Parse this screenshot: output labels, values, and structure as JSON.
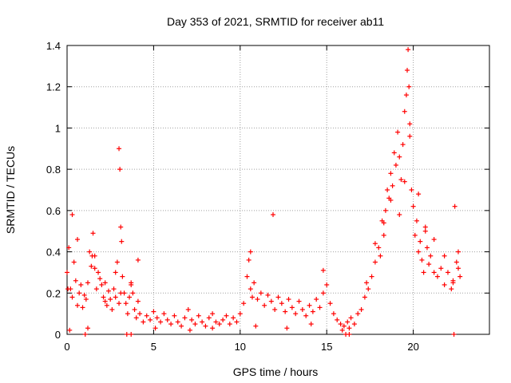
{
  "chart_data": {
    "type": "scatter",
    "title": "Day 353 of 2021, SRMTID for receiver ab11",
    "xlabel": "GPS time / hours",
    "ylabel": "SRMTID / TECUs",
    "xlim": [
      0,
      24.4
    ],
    "ylim": [
      0,
      1.4
    ],
    "grid": true,
    "marker": "+",
    "color": "#ff0000",
    "x_ticks": [
      {
        "value": 0,
        "label": "0"
      },
      {
        "value": 5,
        "label": "5"
      },
      {
        "value": 10,
        "label": "10"
      },
      {
        "value": 15,
        "label": "15"
      },
      {
        "value": 20,
        "label": "20"
      }
    ],
    "y_ticks": [
      {
        "value": 0,
        "label": "0"
      },
      {
        "value": 0.2,
        "label": "0.2"
      },
      {
        "value": 0.4,
        "label": "0.4"
      },
      {
        "value": 0.6,
        "label": "0.6"
      },
      {
        "value": 0.8,
        "label": "0.8"
      },
      {
        "value": 1.0,
        "label": "1"
      },
      {
        "value": 1.2,
        "label": "1.2"
      },
      {
        "value": 1.4,
        "label": "1.4"
      }
    ],
    "series": [
      {
        "name": "SRMTID",
        "x": [
          0.0,
          0.1,
          0.2,
          0.3,
          0.4,
          0.5,
          0.6,
          0.7,
          0.8,
          0.9,
          1.0,
          1.1,
          1.2,
          1.3,
          1.4,
          1.5,
          1.6,
          1.7,
          1.8,
          1.9,
          2.0,
          2.1,
          2.2,
          2.3,
          2.4,
          2.5,
          2.6,
          2.7,
          2.8,
          2.9,
          3.0,
          3.05,
          3.1,
          3.15,
          3.2,
          3.3,
          3.4,
          3.5,
          3.6,
          3.7,
          3.8,
          3.9,
          4.0,
          4.1,
          4.2,
          4.4,
          4.6,
          4.8,
          5.0,
          5.2,
          5.4,
          5.6,
          5.8,
          6.0,
          6.2,
          6.4,
          6.6,
          6.8,
          7.0,
          7.2,
          7.4,
          7.6,
          7.8,
          8.0,
          8.2,
          8.4,
          8.6,
          8.8,
          9.0,
          9.2,
          9.4,
          9.6,
          9.8,
          10.0,
          10.2,
          10.4,
          10.5,
          10.6,
          10.7,
          10.8,
          11.0,
          11.2,
          11.4,
          11.6,
          11.8,
          12.0,
          12.2,
          12.4,
          12.6,
          12.8,
          13.0,
          13.2,
          13.4,
          13.6,
          13.8,
          14.0,
          14.2,
          14.4,
          14.6,
          14.8,
          15.0,
          15.2,
          15.4,
          15.6,
          15.8,
          16.0,
          16.2,
          16.4,
          16.6,
          16.8,
          17.0,
          17.2,
          17.4,
          17.6,
          17.8,
          18.0,
          18.1,
          18.2,
          18.3,
          18.4,
          18.5,
          18.6,
          18.7,
          18.8,
          18.9,
          19.0,
          19.1,
          19.2,
          19.3,
          19.4,
          19.5,
          19.6,
          19.65,
          19.7,
          19.75,
          19.8,
          19.9,
          20.0,
          20.1,
          20.2,
          20.3,
          20.4,
          20.5,
          20.6,
          20.7,
          20.8,
          20.9,
          21.0,
          21.2,
          21.4,
          21.6,
          21.8,
          22.0,
          22.2,
          22.3,
          22.4,
          22.5,
          22.6,
          22.7,
          0.05,
          0.3,
          0.6,
          1.45,
          1.6,
          2.2,
          2.8,
          3.0,
          3.1,
          3.7,
          4.1,
          10.6,
          11.9,
          14.8,
          17.3,
          17.8,
          18.3,
          18.7,
          19.2,
          19.5,
          19.8,
          20.3,
          20.7,
          21.2,
          21.8,
          22.3,
          22.6,
          0.15,
          1.2,
          5.1,
          7.1,
          8.4,
          10.9,
          12.7,
          14.1,
          15.9,
          16.3,
          1.05,
          3.45,
          3.7,
          16.1,
          16.3,
          22.35
        ],
        "y": [
          0.3,
          0.42,
          0.22,
          0.18,
          0.35,
          0.26,
          0.14,
          0.2,
          0.24,
          0.13,
          0.19,
          0.17,
          0.25,
          0.4,
          0.33,
          0.49,
          0.38,
          0.22,
          0.3,
          0.27,
          0.24,
          0.18,
          0.16,
          0.14,
          0.21,
          0.17,
          0.12,
          0.22,
          0.3,
          0.35,
          0.9,
          0.8,
          0.52,
          0.45,
          0.28,
          0.2,
          0.15,
          0.1,
          0.18,
          0.25,
          0.2,
          0.12,
          0.08,
          0.16,
          0.1,
          0.06,
          0.09,
          0.07,
          0.11,
          0.08,
          0.06,
          0.1,
          0.07,
          0.05,
          0.09,
          0.06,
          0.04,
          0.08,
          0.12,
          0.07,
          0.05,
          0.09,
          0.06,
          0.04,
          0.08,
          0.1,
          0.06,
          0.05,
          0.07,
          0.09,
          0.05,
          0.08,
          0.06,
          0.1,
          0.15,
          0.28,
          0.36,
          0.22,
          0.18,
          0.25,
          0.17,
          0.2,
          0.14,
          0.19,
          0.16,
          0.12,
          0.18,
          0.15,
          0.11,
          0.17,
          0.13,
          0.1,
          0.16,
          0.12,
          0.09,
          0.14,
          0.11,
          0.17,
          0.13,
          0.2,
          0.24,
          0.15,
          0.1,
          0.07,
          0.05,
          0.04,
          0.06,
          0.08,
          0.05,
          0.1,
          0.12,
          0.18,
          0.22,
          0.28,
          0.35,
          0.42,
          0.38,
          0.55,
          0.48,
          0.6,
          0.7,
          0.66,
          0.78,
          0.72,
          0.88,
          0.82,
          0.98,
          0.86,
          0.75,
          0.92,
          1.08,
          1.16,
          1.28,
          1.38,
          1.2,
          1.02,
          0.7,
          0.62,
          0.48,
          0.55,
          0.4,
          0.45,
          0.36,
          0.3,
          0.52,
          0.42,
          0.34,
          0.38,
          0.3,
          0.28,
          0.32,
          0.24,
          0.3,
          0.22,
          0.26,
          0.62,
          0.35,
          0.4,
          0.28,
          0.22,
          0.58,
          0.46,
          0.38,
          0.32,
          0.25,
          0.18,
          0.15,
          0.2,
          0.24,
          0.36,
          0.4,
          0.58,
          0.31,
          0.25,
          0.44,
          0.54,
          0.65,
          0.58,
          0.74,
          0.96,
          0.68,
          0.5,
          0.46,
          0.38,
          0.25,
          0.32,
          0.02,
          0.03,
          0.03,
          0.02,
          0.03,
          0.04,
          0.03,
          0.05,
          0.02,
          0.03,
          0.0,
          0.0,
          0.0,
          0.0,
          0.0,
          0.0
        ]
      }
    ]
  }
}
